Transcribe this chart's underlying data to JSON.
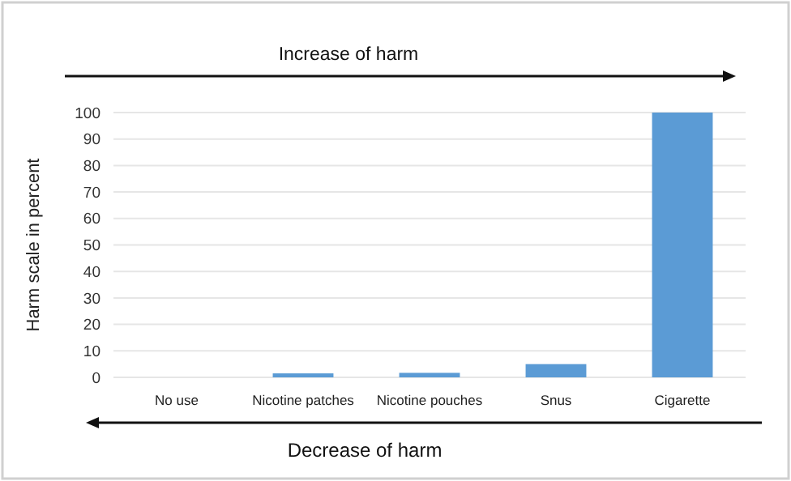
{
  "chart_data": {
    "type": "bar",
    "ylabel": "Harm scale in percent",
    "categories": [
      "No use",
      "Nicotine patches",
      "Nicotine pouches",
      "Snus",
      "Cigarette"
    ],
    "values": [
      0,
      1.5,
      1.7,
      5,
      100
    ],
    "color": "#5b9bd5",
    "ylim": [
      0,
      100
    ],
    "yticks": [
      0,
      10,
      20,
      30,
      40,
      50,
      60,
      70,
      80,
      90,
      100
    ],
    "grid": "y",
    "annotations": [
      "Increase of harm",
      "Decrease of harm"
    ]
  }
}
